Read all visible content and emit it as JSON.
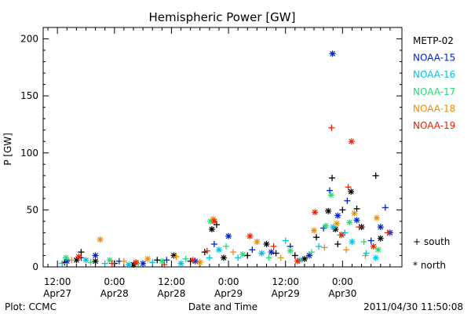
{
  "chart_data": {
    "type": "scatter",
    "title": "Hemispheric Power [GW]",
    "ylabel": "P [GW]",
    "xlabel": "Date and Time",
    "ylim": [
      0,
      210
    ],
    "xlim": [
      "2011-04-27T12:00",
      "2011-04-30T23:00"
    ],
    "x_unit": "hours after 2011-04-27 00:00",
    "grid": false,
    "legend_position": "right",
    "y_ticks": [
      0,
      50,
      100,
      150,
      200
    ],
    "y_tick_labels": [
      "0",
      "50",
      "100",
      "150",
      "200"
    ],
    "x_ticks": [
      {
        "line1": "12:00",
        "line2": "Apr27"
      },
      {
        "line1": "0:00",
        "line2": "Apr28"
      },
      {
        "line1": "12:00",
        "line2": "Apr28"
      },
      {
        "line1": "0:00",
        "line2": "Apr29"
      },
      {
        "line1": "12:00",
        "line2": "Apr29"
      },
      {
        "line1": "0:00",
        "line2": "Apr30"
      }
    ],
    "x_tick_hours": [
      12,
      24,
      36,
      48,
      60,
      72
    ],
    "marker_legend": [
      {
        "symbol": "+",
        "label": "south"
      },
      {
        "symbol": "*",
        "label": "north"
      }
    ],
    "series": [
      {
        "name": "METP-02",
        "color": "#000000",
        "points": [
          {
            "x": 13.5,
            "y": 4,
            "m": "+"
          },
          {
            "x": 16,
            "y": 6,
            "m": "*"
          },
          {
            "x": 17,
            "y": 13,
            "m": "+"
          },
          {
            "x": 20,
            "y": 5,
            "m": "*"
          },
          {
            "x": 24,
            "y": 3,
            "m": "+"
          },
          {
            "x": 28,
            "y": 2,
            "m": "*"
          },
          {
            "x": 33,
            "y": 6,
            "m": "+"
          },
          {
            "x": 36.5,
            "y": 10,
            "m": "*"
          },
          {
            "x": 40,
            "y": 5,
            "m": "+"
          },
          {
            "x": 43,
            "y": 13,
            "m": "+"
          },
          {
            "x": 44.5,
            "y": 33,
            "m": "*"
          },
          {
            "x": 45.5,
            "y": 37,
            "m": "+"
          },
          {
            "x": 47,
            "y": 8,
            "m": "*"
          },
          {
            "x": 52,
            "y": 10,
            "m": "+"
          },
          {
            "x": 56,
            "y": 20,
            "m": "*"
          },
          {
            "x": 58,
            "y": 12,
            "m": "+"
          },
          {
            "x": 62,
            "y": 10,
            "m": "+"
          },
          {
            "x": 64,
            "y": 7,
            "m": "*"
          },
          {
            "x": 66.5,
            "y": 26,
            "m": "+"
          },
          {
            "x": 69,
            "y": 49,
            "m": "*"
          },
          {
            "x": 69.8,
            "y": 78,
            "m": "+"
          },
          {
            "x": 70.5,
            "y": 33,
            "m": "*"
          },
          {
            "x": 71,
            "y": 20,
            "m": "+"
          },
          {
            "x": 72,
            "y": 50,
            "m": "+"
          },
          {
            "x": 73.8,
            "y": 66,
            "m": "*"
          },
          {
            "x": 75,
            "y": 51,
            "m": "+"
          },
          {
            "x": 76,
            "y": 35,
            "m": "*"
          },
          {
            "x": 79,
            "y": 80,
            "m": "+"
          },
          {
            "x": 80,
            "y": 25,
            "m": "*"
          }
        ]
      },
      {
        "name": "NOAA-15",
        "color": "#0022cc",
        "points": [
          {
            "x": 14,
            "y": 5,
            "m": "*"
          },
          {
            "x": 17,
            "y": 8,
            "m": "+"
          },
          {
            "x": 20,
            "y": 10,
            "m": "*"
          },
          {
            "x": 25,
            "y": 5,
            "m": "+"
          },
          {
            "x": 30,
            "y": 3,
            "m": "*"
          },
          {
            "x": 35,
            "y": 6,
            "m": "+"
          },
          {
            "x": 41,
            "y": 5,
            "m": "*"
          },
          {
            "x": 45,
            "y": 20,
            "m": "+"
          },
          {
            "x": 48,
            "y": 27,
            "m": "*"
          },
          {
            "x": 53,
            "y": 15,
            "m": "+"
          },
          {
            "x": 57,
            "y": 13,
            "m": "*"
          },
          {
            "x": 61,
            "y": 18,
            "m": "+"
          },
          {
            "x": 65,
            "y": 10,
            "m": "*"
          },
          {
            "x": 68,
            "y": 34,
            "m": "+"
          },
          {
            "x": 69.3,
            "y": 67,
            "m": "+"
          },
          {
            "x": 69.9,
            "y": 187,
            "m": "*"
          },
          {
            "x": 71,
            "y": 45,
            "m": "*"
          },
          {
            "x": 73,
            "y": 58,
            "m": "+"
          },
          {
            "x": 75,
            "y": 41,
            "m": "*"
          },
          {
            "x": 78,
            "y": 23,
            "m": "+"
          },
          {
            "x": 80,
            "y": 35,
            "m": "*"
          },
          {
            "x": 81,
            "y": 52,
            "m": "+"
          },
          {
            "x": 82,
            "y": 30,
            "m": "*"
          }
        ]
      },
      {
        "name": "NOAA-16",
        "color": "#00c0e8",
        "points": [
          {
            "x": 13,
            "y": 3,
            "m": "+"
          },
          {
            "x": 18,
            "y": 6,
            "m": "*"
          },
          {
            "x": 22,
            "y": 3,
            "m": "+"
          },
          {
            "x": 27,
            "y": 2,
            "m": "*"
          },
          {
            "x": 32,
            "y": 4,
            "m": "+"
          },
          {
            "x": 38,
            "y": 3,
            "m": "*"
          },
          {
            "x": 44,
            "y": 8,
            "m": "+"
          },
          {
            "x": 46,
            "y": 15,
            "m": "*"
          },
          {
            "x": 50,
            "y": 8,
            "m": "+"
          },
          {
            "x": 55,
            "y": 12,
            "m": "*"
          },
          {
            "x": 60,
            "y": 23,
            "m": "+"
          },
          {
            "x": 63,
            "y": 6,
            "m": "*"
          },
          {
            "x": 67,
            "y": 18,
            "m": "+"
          },
          {
            "x": 70,
            "y": 35,
            "m": "*"
          },
          {
            "x": 72.5,
            "y": 30,
            "m": "+"
          },
          {
            "x": 74,
            "y": 22,
            "m": "*"
          },
          {
            "x": 77,
            "y": 12,
            "m": "+"
          },
          {
            "x": 79,
            "y": 8,
            "m": "*"
          }
        ]
      },
      {
        "name": "NOAA-17",
        "color": "#22dd77",
        "points": [
          {
            "x": 13.8,
            "y": 8,
            "m": "*"
          },
          {
            "x": 19,
            "y": 4,
            "m": "+"
          },
          {
            "x": 23,
            "y": 6,
            "m": "*"
          },
          {
            "x": 29,
            "y": 3,
            "m": "+"
          },
          {
            "x": 34,
            "y": 5,
            "m": "*"
          },
          {
            "x": 39,
            "y": 7,
            "m": "+"
          },
          {
            "x": 44.2,
            "y": 40,
            "m": "*"
          },
          {
            "x": 47.5,
            "y": 18,
            "m": "+"
          },
          {
            "x": 51,
            "y": 11,
            "m": "*"
          },
          {
            "x": 56.5,
            "y": 8,
            "m": "+"
          },
          {
            "x": 61,
            "y": 14,
            "m": "*"
          },
          {
            "x": 65.5,
            "y": 13,
            "m": "+"
          },
          {
            "x": 68.5,
            "y": 36,
            "m": "*"
          },
          {
            "x": 69.6,
            "y": 63,
            "m": "*"
          },
          {
            "x": 71.5,
            "y": 28,
            "m": "+"
          },
          {
            "x": 73.5,
            "y": 39,
            "m": "*"
          },
          {
            "x": 76.5,
            "y": 22,
            "m": "+"
          },
          {
            "x": 79.5,
            "y": 15,
            "m": "*"
          }
        ]
      },
      {
        "name": "NOAA-18",
        "color": "#f08c00",
        "points": [
          {
            "x": 15,
            "y": 6,
            "m": "+"
          },
          {
            "x": 21,
            "y": 24,
            "m": "*"
          },
          {
            "x": 26,
            "y": 5,
            "m": "+"
          },
          {
            "x": 31,
            "y": 7,
            "m": "*"
          },
          {
            "x": 37,
            "y": 9,
            "m": "+"
          },
          {
            "x": 42,
            "y": 4,
            "m": "*"
          },
          {
            "x": 44.8,
            "y": 42,
            "m": "*"
          },
          {
            "x": 49,
            "y": 13,
            "m": "+"
          },
          {
            "x": 54,
            "y": 22,
            "m": "*"
          },
          {
            "x": 59,
            "y": 8,
            "m": "+"
          },
          {
            "x": 66,
            "y": 32,
            "m": "*"
          },
          {
            "x": 68.2,
            "y": 17,
            "m": "+"
          },
          {
            "x": 70.8,
            "y": 38,
            "m": "*"
          },
          {
            "x": 72.8,
            "y": 15,
            "m": "+"
          },
          {
            "x": 74.5,
            "y": 47,
            "m": "*"
          },
          {
            "x": 76.8,
            "y": 10,
            "m": "+"
          },
          {
            "x": 79.2,
            "y": 43,
            "m": "*"
          }
        ]
      },
      {
        "name": "NOAA-19",
        "color": "#ee2200",
        "points": [
          {
            "x": 16.5,
            "y": 9,
            "m": "*"
          },
          {
            "x": 23.5,
            "y": 3,
            "m": "+"
          },
          {
            "x": 28.5,
            "y": 4,
            "m": "*"
          },
          {
            "x": 34.5,
            "y": 2,
            "m": "+"
          },
          {
            "x": 40.5,
            "y": 6,
            "m": "*"
          },
          {
            "x": 43.5,
            "y": 14,
            "m": "+"
          },
          {
            "x": 45,
            "y": 40,
            "m": "*"
          },
          {
            "x": 52.5,
            "y": 27,
            "m": "*"
          },
          {
            "x": 57.5,
            "y": 18,
            "m": "+"
          },
          {
            "x": 62.5,
            "y": 5,
            "m": "*"
          },
          {
            "x": 66.2,
            "y": 48,
            "m": "*"
          },
          {
            "x": 69.7,
            "y": 122,
            "m": "+"
          },
          {
            "x": 71.8,
            "y": 28,
            "m": "*"
          },
          {
            "x": 73.2,
            "y": 70,
            "m": "+"
          },
          {
            "x": 73.9,
            "y": 110,
            "m": "*"
          },
          {
            "x": 75.5,
            "y": 35,
            "m": "+"
          },
          {
            "x": 78.5,
            "y": 18,
            "m": "*"
          },
          {
            "x": 81.5,
            "y": 30,
            "m": "+"
          }
        ]
      }
    ]
  },
  "footer": {
    "plot_credit": "Plot: CCMC",
    "timestamp": "2011/04/30 11:50:08"
  }
}
